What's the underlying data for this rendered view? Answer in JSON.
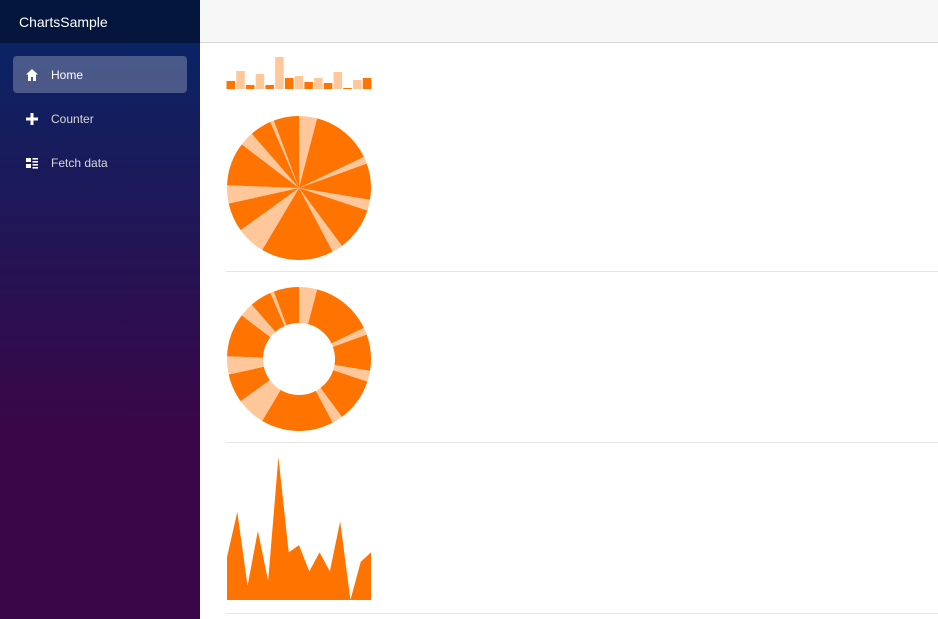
{
  "app": {
    "brand": "ChartsSample"
  },
  "nav": {
    "items": [
      {
        "label": "Home",
        "icon": "home-icon",
        "active": true
      },
      {
        "label": "Counter",
        "icon": "plus-icon",
        "active": false
      },
      {
        "label": "Fetch data",
        "icon": "list-icon",
        "active": false
      }
    ]
  },
  "colors": {
    "dark": "#ff7300",
    "light": "#ffc79a"
  },
  "chart_data": [
    {
      "type": "bar",
      "values": [
        8,
        18,
        4,
        15,
        4,
        32,
        11,
        13,
        7,
        11,
        6,
        17,
        1,
        9,
        11
      ],
      "ylim": [
        0,
        32
      ],
      "colors": [
        "dark",
        "light",
        "dark",
        "light",
        "dark",
        "light",
        "dark",
        "light",
        "dark",
        "light",
        "dark",
        "light",
        "dark",
        "light",
        "dark"
      ]
    },
    {
      "type": "pie",
      "values": [
        5,
        17,
        2,
        10,
        3,
        12,
        3,
        20,
        8,
        8,
        5,
        12,
        4,
        6,
        1,
        7
      ],
      "colors": [
        "light",
        "dark",
        "light",
        "dark",
        "light",
        "dark",
        "light",
        "dark",
        "light",
        "dark",
        "light",
        "dark",
        "light",
        "dark",
        "light",
        "dark"
      ]
    },
    {
      "type": "pie",
      "donut": true,
      "values": [
        5,
        17,
        2,
        10,
        3,
        12,
        3,
        20,
        8,
        8,
        5,
        12,
        4,
        6,
        1,
        7
      ],
      "colors": [
        "light",
        "dark",
        "light",
        "dark",
        "light",
        "dark",
        "light",
        "dark",
        "light",
        "dark",
        "light",
        "dark",
        "light",
        "dark",
        "light",
        "dark"
      ]
    },
    {
      "type": "area",
      "values": [
        9,
        18.5,
        3,
        14.5,
        4,
        30,
        10,
        11.5,
        6,
        10,
        6,
        16.5,
        0,
        8,
        10
      ],
      "ylim": [
        0,
        30
      ]
    }
  ]
}
